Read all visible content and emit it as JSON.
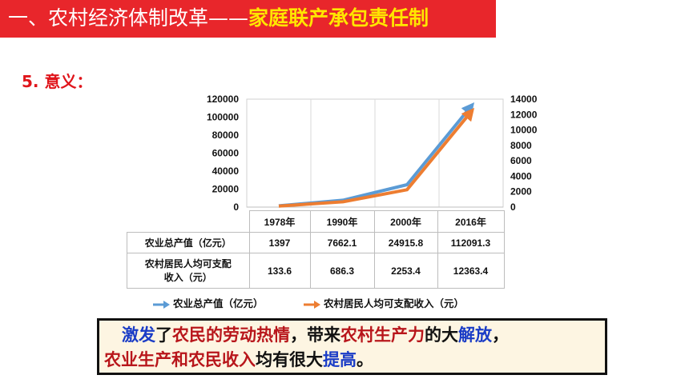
{
  "banner": {
    "main": "一、农村经济体制改革——",
    "highlight": "家庭联产承包责任制"
  },
  "section": {
    "label": "5. 意义："
  },
  "chart_data": {
    "type": "line",
    "categories": [
      "1978年",
      "1990年",
      "2000年",
      "2016年"
    ],
    "series": [
      {
        "name": "农业总产值（亿元）",
        "axis": "left",
        "color": "#5b9bd5",
        "values": [
          1397,
          7662.1,
          24915.8,
          112091.3
        ]
      },
      {
        "name": "农村居民人均可支配收入（元）",
        "axis": "right",
        "color": "#ed7d31",
        "values": [
          133.6,
          686.3,
          2253.4,
          12363.4
        ]
      }
    ],
    "y_left": {
      "ticks": [
        "120000",
        "100000",
        "80000",
        "60000",
        "40000",
        "20000",
        "0"
      ],
      "range": [
        0,
        120000
      ]
    },
    "y_right": {
      "ticks": [
        "14000",
        "12000",
        "10000",
        "8000",
        "6000",
        "4000",
        "2000",
        "0"
      ],
      "range": [
        0,
        14000
      ]
    },
    "table": {
      "rows": [
        {
          "label": "农业总产值（亿元）",
          "values": [
            "1397",
            "7662.1",
            "24915.8",
            "112091.3"
          ]
        },
        {
          "label_line1": "农村居民人均可支配",
          "label_line2": "收入（元）",
          "values": [
            "133.6",
            "686.3",
            "2253.4",
            "12363.4"
          ]
        }
      ]
    },
    "legend": [
      "农业总产值（亿元）",
      "农村居民人均可支配收入（元）"
    ]
  },
  "conclusion": {
    "line1": [
      {
        "text": "激发",
        "color": "blue"
      },
      {
        "text": "了",
        "color": "dark"
      },
      {
        "text": "农民的劳动热情",
        "color": "red"
      },
      {
        "text": "，带来",
        "color": "dark"
      },
      {
        "text": "农村生产力",
        "color": "red"
      },
      {
        "text": "的大",
        "color": "dark"
      },
      {
        "text": "解放",
        "color": "blue"
      },
      {
        "text": "，",
        "color": "dark"
      }
    ],
    "line2": [
      {
        "text": "农业生产和农民收入",
        "color": "red"
      },
      {
        "text": "均有很大",
        "color": "dark"
      },
      {
        "text": "提高",
        "color": "blue"
      },
      {
        "text": "。",
        "color": "dark"
      }
    ]
  }
}
